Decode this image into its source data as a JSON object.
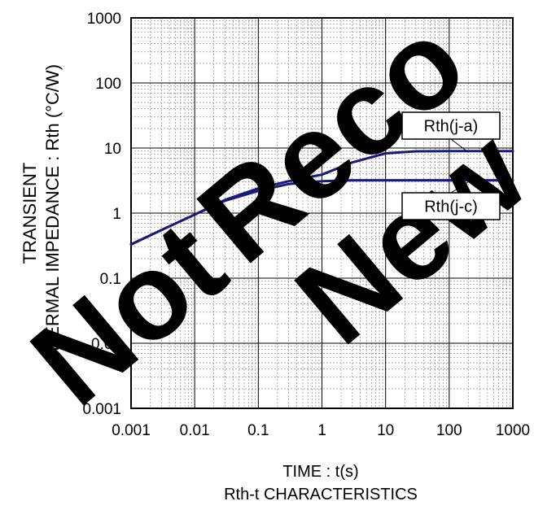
{
  "chart_data": {
    "type": "line",
    "xscale": "log",
    "yscale": "log",
    "xlim": [
      0.001,
      1000
    ],
    "ylim": [
      0.001,
      1000
    ],
    "x_ticks": [
      "0.001",
      "0.01",
      "0.1",
      "1",
      "10",
      "100",
      "1000"
    ],
    "y_ticks": [
      "0.001",
      "0.01",
      "0.1",
      "1",
      "10",
      "100",
      "1000"
    ],
    "ylabel_line1": "TRANSIENT",
    "ylabel_line2": "THERMAL IMPEDANCE : Rth (°C/W)",
    "xlabel": "TIME : t(s)",
    "caption": "Rth-t CHARACTERISTICS",
    "grid": true,
    "watermark": "Not Recommended for New Designs",
    "series": [
      {
        "name": "Rth(j-a)",
        "color": "#1a1a7a",
        "x": [
          0.001,
          0.003,
          0.01,
          0.03,
          0.1,
          0.3,
          1,
          3,
          10,
          30,
          100,
          300,
          1000
        ],
        "y": [
          0.33,
          0.55,
          0.95,
          1.6,
          2.4,
          3.1,
          3.9,
          6.0,
          8.3,
          8.9,
          9.0,
          9.0,
          9.0
        ]
      },
      {
        "name": "Rth(j-c)",
        "color": "#1a1a7a",
        "x": [
          0.001,
          0.003,
          0.01,
          0.03,
          0.1,
          0.3,
          1,
          3,
          10,
          30,
          100,
          300,
          1000
        ],
        "y": [
          0.33,
          0.55,
          0.95,
          1.55,
          2.2,
          2.8,
          3.1,
          3.2,
          3.2,
          3.2,
          3.2,
          3.2,
          3.2
        ]
      }
    ]
  }
}
